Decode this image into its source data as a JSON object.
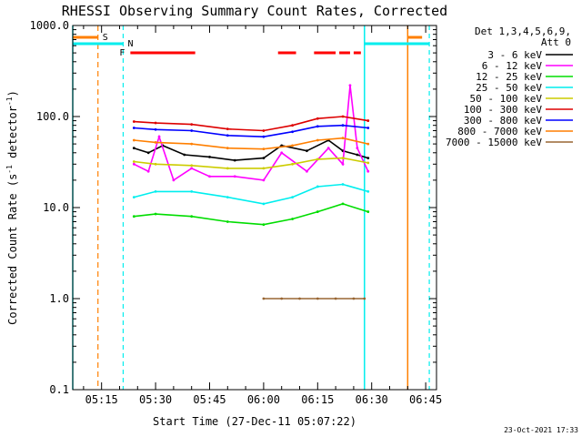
{
  "chart_data": {
    "type": "line",
    "title": "RHESSI Observing Summary Count Rates, Corrected",
    "ylabel_main": "Corrected Count Rate (s",
    "ylabel_sup": "-1",
    "ylabel_mid": " detector",
    "ylabel_end": ")",
    "xlabel": "Start Time (27-Dec-11 05:07:22)",
    "yscale": "log",
    "ylim": [
      0.1,
      1000
    ],
    "xlim": [
      "05:07",
      "06:48"
    ],
    "grid": false,
    "legend_position": "right",
    "legend_title": [
      "Det 1,3,4,5,6,9,",
      "Att 0"
    ],
    "x_ticks": [
      "05:15",
      "05:30",
      "05:45",
      "06:00",
      "06:15",
      "06:30",
      "06:45"
    ],
    "y_ticks": [
      "0.1",
      "1.0",
      "10.0",
      "100.0",
      "1000.0"
    ],
    "timestamp": "23-Oct-2021 17:33",
    "flag_labels": {
      "saa": "S",
      "night": "N",
      "flare": "F"
    },
    "colors": {
      "s1": "#000000",
      "s2": "#ff00ff",
      "s3": "#00dd00",
      "s4": "#00eeee",
      "s5": "#cccc00",
      "s6": "#dd0000",
      "s7": "#0000ff",
      "s8": "#ff7f00",
      "s9": "#996633",
      "saa": "#ff7f00",
      "night": "#00eeee",
      "flare": "#ff0000"
    },
    "series": [
      {
        "name": "3 - 6 keV",
        "color": "#000000",
        "x": [
          "05:24",
          "05:28",
          "05:32",
          "05:38",
          "05:45",
          "05:52",
          "06:00",
          "06:05",
          "06:12",
          "06:18",
          "06:22",
          "06:26",
          "06:29"
        ],
        "values": [
          45,
          40,
          48,
          38,
          36,
          33,
          35,
          48,
          42,
          55,
          42,
          38,
          35
        ]
      },
      {
        "name": "6 - 12 keV",
        "color": "#ff00ff",
        "x": [
          "05:24",
          "05:28",
          "05:31",
          "05:35",
          "05:40",
          "05:45",
          "05:52",
          "06:00",
          "06:05",
          "06:12",
          "06:18",
          "06:22",
          "06:24",
          "06:26",
          "06:29"
        ],
        "values": [
          30,
          25,
          60,
          20,
          27,
          22,
          22,
          20,
          40,
          25,
          45,
          30,
          220,
          45,
          25
        ]
      },
      {
        "name": "12 - 25 keV",
        "color": "#00dd00",
        "x": [
          "05:24",
          "05:30",
          "05:40",
          "05:50",
          "06:00",
          "06:08",
          "06:15",
          "06:22",
          "06:29"
        ],
        "values": [
          8,
          8.5,
          8,
          7,
          6.5,
          7.5,
          9,
          11,
          9
        ]
      },
      {
        "name": "25 - 50 keV",
        "color": "#00eeee",
        "x": [
          "05:24",
          "05:30",
          "05:40",
          "05:50",
          "06:00",
          "06:08",
          "06:15",
          "06:22",
          "06:29"
        ],
        "values": [
          13,
          15,
          15,
          13,
          11,
          13,
          17,
          18,
          15
        ]
      },
      {
        "name": "50 - 100 keV",
        "color": "#cccc00",
        "x": [
          "05:24",
          "05:30",
          "05:40",
          "05:50",
          "06:00",
          "06:08",
          "06:15",
          "06:22",
          "06:29"
        ],
        "values": [
          32,
          30,
          29,
          27,
          27,
          30,
          34,
          35,
          31
        ]
      },
      {
        "name": "100 - 300 keV",
        "color": "#dd0000",
        "x": [
          "05:24",
          "05:30",
          "05:40",
          "05:50",
          "06:00",
          "06:08",
          "06:15",
          "06:22",
          "06:29"
        ],
        "values": [
          88,
          85,
          82,
          73,
          70,
          80,
          95,
          100,
          90
        ]
      },
      {
        "name": "300 - 800 keV",
        "color": "#0000ff",
        "x": [
          "05:24",
          "05:30",
          "05:40",
          "05:50",
          "06:00",
          "06:08",
          "06:15",
          "06:22",
          "06:29"
        ],
        "values": [
          75,
          72,
          70,
          62,
          60,
          68,
          78,
          80,
          75
        ]
      },
      {
        "name": "800 - 7000 keV",
        "color": "#ff7f00",
        "x": [
          "05:24",
          "05:30",
          "05:40",
          "05:50",
          "06:00",
          "06:08",
          "06:15",
          "06:22",
          "06:29"
        ],
        "values": [
          55,
          52,
          50,
          45,
          44,
          48,
          55,
          58,
          50
        ]
      },
      {
        "name": "7000 - 15000 keV",
        "color": "#996633",
        "x": [
          "06:00",
          "06:05",
          "06:10",
          "06:15",
          "06:20",
          "06:25",
          "06:28"
        ],
        "values": [
          1.0,
          1.0,
          1.0,
          1.0,
          1.0,
          1.0,
          1.0
        ]
      }
    ],
    "saa_bars": [
      [
        "05:07",
        "05:14"
      ],
      [
        "06:40",
        "06:44"
      ]
    ],
    "night_bars": [
      [
        "05:07",
        "05:21"
      ],
      [
        "06:28",
        "06:46"
      ]
    ],
    "flare_bars": [
      [
        "05:23",
        "05:41"
      ],
      [
        "06:04",
        "06:09"
      ],
      [
        "06:14",
        "06:20"
      ],
      [
        "06:21",
        "06:24"
      ],
      [
        "06:25",
        "06:27"
      ]
    ],
    "night_lines": [
      "05:07",
      "06:28"
    ],
    "night_dashed": [
      "05:21",
      "06:46"
    ],
    "saa_dashed": [
      "05:14"
    ],
    "saa_lines": [
      "06:40"
    ]
  }
}
